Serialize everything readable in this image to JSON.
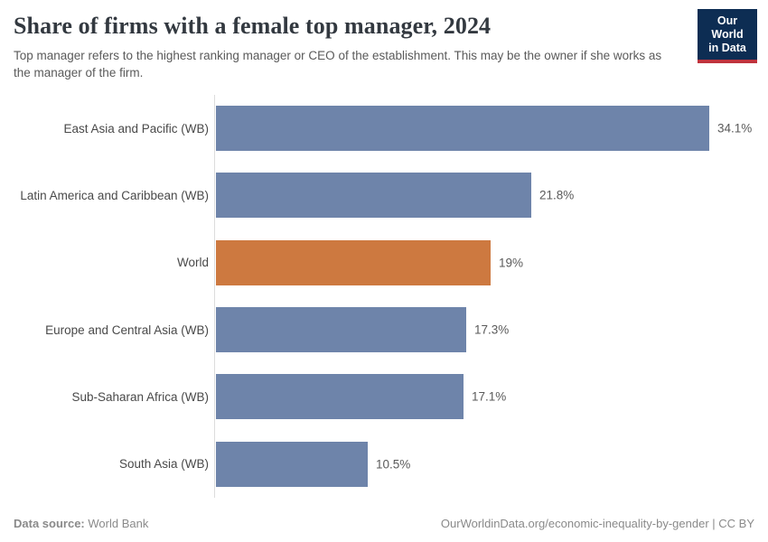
{
  "header": {
    "title": "Share of firms with a female top manager, 2024",
    "subtitle": "Top manager refers to the highest ranking manager or CEO of the establishment. This may be the owner if she works as the manager of the firm.",
    "logo": {
      "line1": "Our World",
      "line2": "in Data"
    }
  },
  "chart_data": {
    "type": "bar",
    "orientation": "horizontal",
    "title": "Share of firms with a female top manager, 2024",
    "categories": [
      "East Asia and Pacific (WB)",
      "Latin America and Caribbean (WB)",
      "World",
      "Europe and Central Asia (WB)",
      "Sub-Saharan Africa (WB)",
      "South Asia (WB)"
    ],
    "values": [
      34.1,
      21.8,
      19,
      17.3,
      17.1,
      10.5
    ],
    "value_labels": [
      "34.1%",
      "21.8%",
      "19%",
      "17.3%",
      "17.1%",
      "10.5%"
    ],
    "unit": "%",
    "xlim": [
      0,
      34.1
    ],
    "grid": false,
    "legend": "none",
    "highlight_category": "World",
    "bar_color": "#6e84aa",
    "highlight_color": "#cd7940"
  },
  "footer": {
    "data_source_label": "Data source:",
    "data_source_value": "World Bank",
    "right_text": "OurWorldinData.org/economic-inequality-by-gender | CC BY"
  },
  "colors": {
    "bar_blue": "#6e84aa",
    "bar_orange": "#cd7940",
    "logo_navy": "#0d2d53",
    "logo_red": "#c0333d",
    "axis_gray": "#dcdcdc"
  }
}
